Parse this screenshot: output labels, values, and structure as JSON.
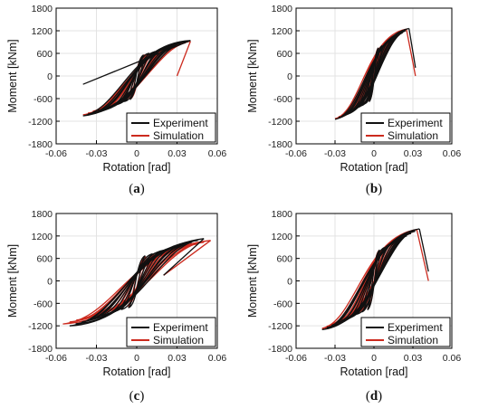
{
  "colors": {
    "experiment": "#111111",
    "simulation": "#cc2a1e",
    "grid": "#e3e3e3",
    "axis": "#000000"
  },
  "chart_data": [
    {
      "type": "line",
      "panel": "a",
      "xlabel": "Rotation [rad]",
      "ylabel": "Moment [kNm]",
      "xlim": [
        -0.06,
        0.06
      ],
      "ylim": [
        -1800,
        1800
      ],
      "xticks": [
        "-0.06",
        "-0.03",
        "0",
        "0.03",
        "0.06"
      ],
      "yticks": [
        "1800",
        "1200",
        "600",
        "0",
        "-600",
        "-1200",
        "-1800"
      ],
      "grid": true,
      "legend_position": "bottom-right",
      "series": [
        {
          "name": "Experiment",
          "peak_x": 0.04,
          "peak_y": 940,
          "neg_x": -0.04,
          "neg_y": -1060,
          "end_x": -0.04,
          "end_y": -220
        },
        {
          "name": "Simulation",
          "peak_x": 0.04,
          "peak_y": 920,
          "neg_x": -0.04,
          "neg_y": -1030,
          "end_x": 0.03,
          "end_y": 0
        }
      ]
    },
    {
      "type": "line",
      "panel": "b",
      "xlabel": "Rotation [rad]",
      "ylabel": "Moment [kNm]",
      "xlim": [
        -0.06,
        0.06
      ],
      "ylim": [
        -1800,
        1800
      ],
      "xticks": [
        "-0.06",
        "-0.03",
        "0",
        "0.03",
        "0.06"
      ],
      "yticks": [
        "1800",
        "1200",
        "600",
        "0",
        "-600",
        "-1200",
        "-1800"
      ],
      "grid": true,
      "legend_position": "bottom-right",
      "series": [
        {
          "name": "Experiment",
          "peak_x": 0.027,
          "peak_y": 1260,
          "neg_x": -0.03,
          "neg_y": -1150,
          "end_x": 0.032,
          "end_y": 220
        },
        {
          "name": "Simulation",
          "peak_x": 0.025,
          "peak_y": 1240,
          "neg_x": -0.03,
          "neg_y": -1130,
          "end_x": 0.032,
          "end_y": 0
        }
      ]
    },
    {
      "type": "line",
      "panel": "c",
      "xlabel": "Rotation [rad]",
      "ylabel": "Moment [kNm]",
      "xlim": [
        -0.06,
        0.06
      ],
      "ylim": [
        -1800,
        1800
      ],
      "xticks": [
        "-0.06",
        "-0.03",
        "0",
        "0.03",
        "0.06"
      ],
      "yticks": [
        "1800",
        "1200",
        "600",
        "0",
        "-600",
        "-1200",
        "-1800"
      ],
      "grid": true,
      "legend_position": "bottom-right",
      "series": [
        {
          "name": "Experiment",
          "peak_x": 0.05,
          "peak_y": 1130,
          "neg_x": -0.05,
          "neg_y": -1200,
          "end_x": 0.02,
          "end_y": 150
        },
        {
          "name": "Simulation",
          "peak_x": 0.055,
          "peak_y": 1080,
          "neg_x": -0.055,
          "neg_y": -1150,
          "end_x": 0.02,
          "end_y": 150
        }
      ]
    },
    {
      "type": "line",
      "panel": "d",
      "xlabel": "Rotation [rad]",
      "ylabel": "Moment [kNm]",
      "xlim": [
        -0.06,
        0.06
      ],
      "ylim": [
        -1800,
        1800
      ],
      "xticks": [
        "-0.06",
        "-0.03",
        "0",
        "0.03",
        "0.06"
      ],
      "yticks": [
        "1800",
        "1200",
        "600",
        "0",
        "-600",
        "-1200",
        "-1800"
      ],
      "grid": true,
      "legend_position": "bottom-right",
      "series": [
        {
          "name": "Experiment",
          "peak_x": 0.035,
          "peak_y": 1390,
          "neg_x": -0.04,
          "neg_y": -1300,
          "end_x": 0.042,
          "end_y": 250
        },
        {
          "name": "Simulation",
          "peak_x": 0.033,
          "peak_y": 1370,
          "neg_x": -0.04,
          "neg_y": -1270,
          "end_x": 0.042,
          "end_y": 0
        }
      ]
    }
  ],
  "captions": [
    {
      "open": "(",
      "letter": "a",
      "close": ")"
    },
    {
      "open": "(",
      "letter": "b",
      "close": ")"
    },
    {
      "open": "(",
      "letter": "c",
      "close": ")"
    },
    {
      "open": "(",
      "letter": "d",
      "close": ")"
    }
  ]
}
